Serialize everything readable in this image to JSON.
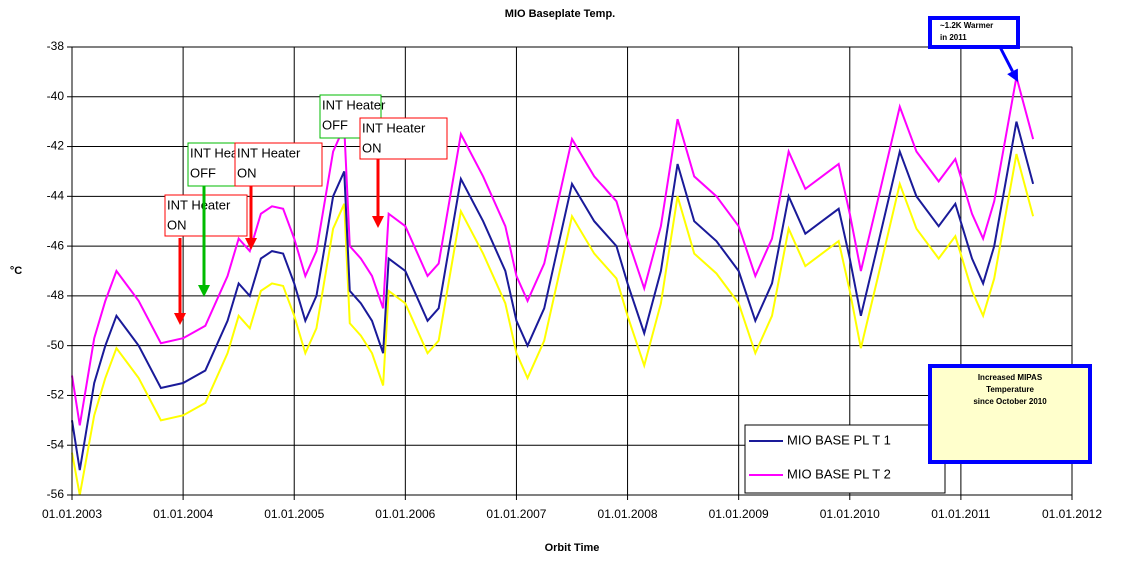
{
  "chart_data": {
    "type": "line",
    "title": "MIO Baseplate Temp.",
    "x_label": "Orbit Time",
    "y_label": "°C",
    "xlim": [
      2003,
      2012
    ],
    "xticks": [
      {
        "value": 2003,
        "label": "01.01.2003"
      },
      {
        "value": 2004,
        "label": "01.01.2004"
      },
      {
        "value": 2005,
        "label": "01.01.2005"
      },
      {
        "value": 2006,
        "label": "01.01.2006"
      },
      {
        "value": 2007,
        "label": "01.01.2007"
      },
      {
        "value": 2008,
        "label": "01.01.2008"
      },
      {
        "value": 2009,
        "label": "01.01.2009"
      },
      {
        "value": 2010,
        "label": "01.01.2010"
      },
      {
        "value": 2011,
        "label": "01.01.2011"
      },
      {
        "value": 2012,
        "label": "01.01.2012"
      }
    ],
    "ylim": [
      -56,
      -38
    ],
    "yticks": [
      -56,
      -54,
      -52,
      -50,
      -48,
      -46,
      -44,
      -42,
      -40,
      -38
    ],
    "grid": true,
    "legend": "lower right",
    "x": [
      2003.0,
      2003.07,
      2003.2,
      2003.3,
      2003.4,
      2003.6,
      2003.8,
      2004.0,
      2004.2,
      2004.4,
      2004.5,
      2004.6,
      2004.7,
      2004.8,
      2004.9,
      2005.0,
      2005.1,
      2005.2,
      2005.35,
      2005.45,
      2005.5,
      2005.6,
      2005.7,
      2005.8,
      2005.85,
      2006.0,
      2006.2,
      2006.3,
      2006.5,
      2006.7,
      2006.9,
      2007.0,
      2007.1,
      2007.25,
      2007.5,
      2007.7,
      2007.9,
      2008.0,
      2008.15,
      2008.3,
      2008.45,
      2008.6,
      2008.8,
      2009.0,
      2009.15,
      2009.3,
      2009.45,
      2009.6,
      2009.75,
      2009.9,
      2010.0,
      2010.1,
      2010.25,
      2010.45,
      2010.6,
      2010.8,
      2010.95,
      2011.1,
      2011.2,
      2011.3,
      2011.5,
      2011.65
    ],
    "series": [
      {
        "color": "#ffff00",
        "values": [
          -54.3,
          -56,
          -52.8,
          -51.3,
          -50.1,
          -51.3,
          -53,
          -52.8,
          -52.3,
          -50.3,
          -48.8,
          -49.3,
          -47.8,
          -47.5,
          -47.6,
          -48.8,
          -50.3,
          -49.3,
          -45.3,
          -44.3,
          -49.1,
          -49.6,
          -50.3,
          -51.6,
          -47.8,
          -48.3,
          -50.3,
          -49.8,
          -44.6,
          -46.3,
          -48.3,
          -50.3,
          -51.3,
          -49.8,
          -44.8,
          -46.3,
          -47.3,
          -48.8,
          -50.8,
          -48.3,
          -44,
          -46.3,
          -47.1,
          -48.3,
          -50.3,
          -48.8,
          -45.3,
          -46.8,
          -46.3,
          -45.8,
          -47.8,
          -50.1,
          -47.3,
          -43.5,
          -45.3,
          -46.5,
          -45.6,
          -47.8,
          -48.8,
          -47.3,
          -42.3,
          -44.8
        ]
      },
      {
        "name": "MIO BASE PL T 2",
        "color": "#ff00ff",
        "values": [
          -51.2,
          -53.2,
          -49.7,
          -48.2,
          -47,
          -48.2,
          -49.9,
          -49.7,
          -49.2,
          -47.2,
          -45.7,
          -46.2,
          -44.7,
          -44.4,
          -44.5,
          -45.7,
          -47.2,
          -46.2,
          -42.2,
          -41.2,
          -46,
          -46.5,
          -47.2,
          -48.5,
          -44.7,
          -45.2,
          -47.2,
          -46.7,
          -41.5,
          -43.2,
          -45.2,
          -47.2,
          -48.2,
          -46.7,
          -41.7,
          -43.2,
          -44.2,
          -45.7,
          -47.7,
          -45.2,
          -40.9,
          -43.2,
          -44,
          -45.2,
          -47.2,
          -45.7,
          -42.2,
          -43.7,
          -43.2,
          -42.7,
          -44.7,
          -47,
          -44.2,
          -40.4,
          -42.2,
          -43.4,
          -42.5,
          -44.7,
          -45.7,
          -44.2,
          -39.2,
          -41.7
        ]
      },
      {
        "name": "MIO BASE PL T 1",
        "color": "#1a1a99",
        "values": [
          -53,
          -55,
          -51.5,
          -50,
          -48.8,
          -50,
          -51.7,
          -51.5,
          -51,
          -49,
          -47.5,
          -48,
          -46.5,
          -46.2,
          -46.3,
          -47.5,
          -49,
          -48,
          -44,
          -43,
          -47.8,
          -48.3,
          -49,
          -50.3,
          -46.5,
          -47,
          -49,
          -48.5,
          -43.3,
          -45,
          -47,
          -49,
          -50,
          -48.5,
          -43.5,
          -45,
          -46,
          -47.5,
          -49.5,
          -47,
          -42.7,
          -45,
          -45.8,
          -47,
          -49,
          -47.5,
          -44,
          -45.5,
          -45,
          -44.5,
          -46.5,
          -48.8,
          -46,
          -42.2,
          -44,
          -45.2,
          -44.3,
          -46.5,
          -47.5,
          -46,
          -41,
          -43.5
        ]
      }
    ],
    "annotations": [
      {
        "lines": [
          "INT Heater",
          "ON"
        ],
        "color": "#ff0000"
      },
      {
        "lines": [
          "INT Heater",
          "OFF"
        ],
        "color": "#00bb00"
      },
      {
        "lines": [
          "INT Heater",
          "ON"
        ],
        "color": "#ff0000"
      },
      {
        "lines": [
          "INT Heater",
          "OFF"
        ],
        "color": "#00bb00"
      },
      {
        "lines": [
          "INT Heater",
          "ON"
        ],
        "color": "#ff0000"
      },
      {
        "lines": [
          "~1.2K Warmer",
          "in 2011"
        ],
        "color": "#0000ff"
      },
      {
        "lines": [
          "Increased MIPAS",
          "Temperature",
          "since October 2010"
        ],
        "color": "#0000ff"
      }
    ]
  }
}
